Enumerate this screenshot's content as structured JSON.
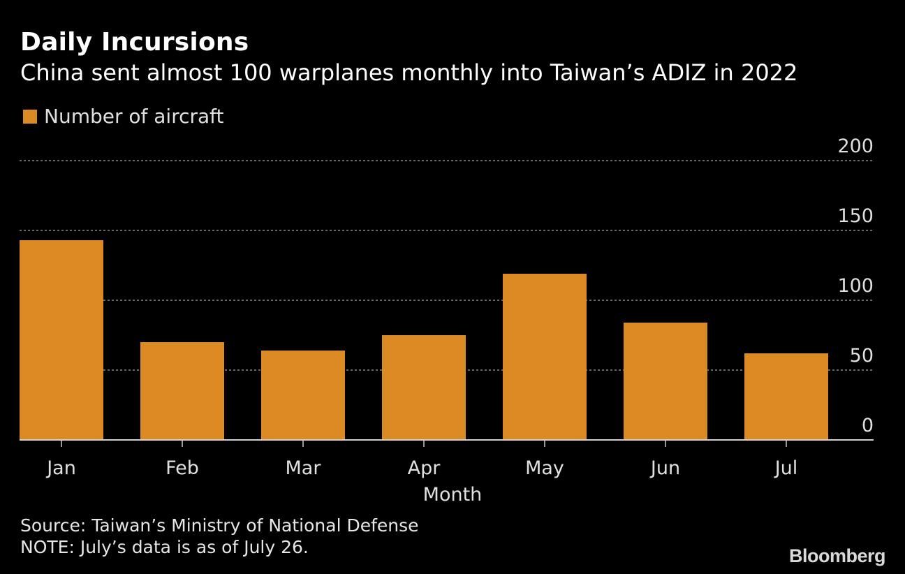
{
  "title": "Daily Incursions",
  "subtitle": "China sent almost 100 warplanes monthly into Taiwan’s ADIZ in 2022",
  "colors": {
    "bar": "#dc8a24",
    "background": "#000000",
    "grid": "#8a8a8a",
    "axis_text": "#e0e0e0"
  },
  "chart_data": {
    "type": "bar",
    "title": "Daily Incursions",
    "subtitle": "China sent almost 100 warplanes monthly into Taiwan’s ADIZ in 2022",
    "categories": [
      "Jan",
      "Feb",
      "Mar",
      "Apr",
      "May",
      "Jun",
      "Jul"
    ],
    "series": [
      {
        "name": "Number of aircraft",
        "values": [
          143,
          70,
          64,
          75,
          119,
          84,
          62
        ]
      }
    ],
    "xlabel": "Month",
    "ylabel": "",
    "ylim": [
      0,
      200
    ],
    "yticks": [
      0,
      50,
      100,
      150,
      200
    ],
    "ytick_labels": [
      "0",
      "50",
      "100",
      "150",
      "200"
    ],
    "y_axis_side": "right",
    "grid": true,
    "legend_position": "top-left"
  },
  "footer": {
    "source": "Source: Taiwan’s Ministry of National Defense",
    "note": "NOTE: July’s data is as of July 26.",
    "brand": "Bloomberg"
  }
}
